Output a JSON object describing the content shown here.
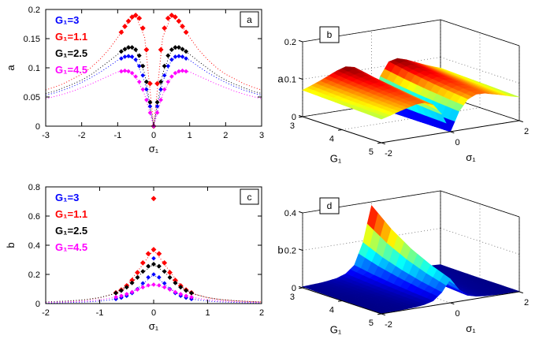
{
  "chart_data": [
    {
      "id": "a",
      "type": "scatter",
      "corner_label": "a",
      "xlabel": "σ₁",
      "ylabel": "a",
      "xlim": [
        -3,
        3
      ],
      "ylim": [
        0,
        0.2
      ],
      "xticks": [
        -3,
        -2,
        -1,
        0,
        1,
        2,
        3
      ],
      "yticks": [
        0,
        0.05,
        0.1,
        0.15,
        0.2
      ],
      "legend_position": "top-left",
      "line_x": [
        -3,
        -2.75,
        -2.5,
        -2.25,
        -2,
        -1.75,
        -1.5,
        -1.25,
        -1,
        -0.75,
        -0.5,
        -0.25,
        0,
        0.25,
        0.5,
        0.75,
        1,
        1.25,
        1.5,
        1.75,
        2,
        2.25,
        2.5,
        2.75,
        3
      ],
      "marker_x": [
        -0.9,
        -0.8,
        -0.7,
        -0.6,
        -0.5,
        -0.4,
        -0.3,
        -0.2,
        -0.1,
        0,
        0.1,
        0.2,
        0.3,
        0.4,
        0.5,
        0.6,
        0.7,
        0.8,
        0.9
      ],
      "series": [
        {
          "label": "G₁=3",
          "color": "#0000ff",
          "msize": 2.8,
          "line_y": [
            0.053,
            0.057,
            0.062,
            0.068,
            0.075,
            0.083,
            0.092,
            0.102,
            0.113,
            0.12,
            0.114,
            0.076,
            0,
            0.076,
            0.114,
            0.12,
            0.113,
            0.102,
            0.092,
            0.083,
            0.075,
            0.068,
            0.062,
            0.057,
            0.053
          ],
          "marker_y": [
            0.116,
            0.119,
            0.12,
            0.119,
            0.114,
            0.103,
            0.087,
            0.063,
            0.034,
            0,
            0.034,
            0.063,
            0.087,
            0.103,
            0.114,
            0.119,
            0.12,
            0.119,
            0.116
          ]
        },
        {
          "label": "G₁=1.1",
          "color": "#ff0000",
          "msize": 3.4,
          "line_y": [
            0.062,
            0.067,
            0.073,
            0.081,
            0.089,
            0.1,
            0.114,
            0.131,
            0.152,
            0.175,
            0.19,
            0.152,
            0,
            0.152,
            0.19,
            0.175,
            0.152,
            0.131,
            0.114,
            0.1,
            0.089,
            0.081,
            0.073,
            0.067,
            0.062
          ],
          "marker_y": [
            0.161,
            0.171,
            0.18,
            0.187,
            0.19,
            0.185,
            0.168,
            0.131,
            0.073,
            0,
            0.073,
            0.131,
            0.168,
            0.185,
            0.19,
            0.187,
            0.18,
            0.171,
            0.161
          ]
        },
        {
          "label": "G₁=2.5",
          "color": "#000000",
          "msize": 3,
          "line_y": [
            0.056,
            0.06,
            0.066,
            0.072,
            0.079,
            0.088,
            0.099,
            0.111,
            0.123,
            0.134,
            0.131,
            0.09,
            0,
            0.09,
            0.131,
            0.134,
            0.123,
            0.111,
            0.099,
            0.088,
            0.079,
            0.072,
            0.066,
            0.06,
            0.056
          ],
          "marker_y": [
            0.128,
            0.132,
            0.135,
            0.135,
            0.131,
            0.121,
            0.103,
            0.076,
            0.041,
            0,
            0.041,
            0.076,
            0.103,
            0.121,
            0.131,
            0.135,
            0.135,
            0.132,
            0.128
          ]
        },
        {
          "label": "G₁=4.5",
          "color": "#ff00ff",
          "msize": 2.8,
          "line_y": [
            0.047,
            0.051,
            0.055,
            0.06,
            0.066,
            0.072,
            0.079,
            0.086,
            0.093,
            0.095,
            0.085,
            0.054,
            0,
            0.054,
            0.085,
            0.095,
            0.093,
            0.086,
            0.079,
            0.072,
            0.066,
            0.06,
            0.055,
            0.051,
            0.047
          ],
          "marker_y": [
            0.094,
            0.095,
            0.094,
            0.091,
            0.085,
            0.076,
            0.063,
            0.045,
            0.023,
            0,
            0.023,
            0.045,
            0.063,
            0.076,
            0.085,
            0.091,
            0.094,
            0.095,
            0.094
          ]
        }
      ]
    },
    {
      "id": "b",
      "type": "surface",
      "corner_label": "b",
      "xlabel": "σ₁",
      "ylabel": "G₁",
      "zlabel": "a",
      "xlim": [
        -2,
        2
      ],
      "ylim": [
        3,
        5
      ],
      "zlim": [
        0,
        0.2
      ],
      "xticks": [
        -2,
        0,
        2
      ],
      "yticks": [
        3,
        4,
        5
      ],
      "zticks": [
        0,
        0.1,
        0.2
      ],
      "colormap": "jet",
      "x": [
        -2,
        -1.75,
        -1.5,
        -1.25,
        -1,
        -0.75,
        -0.5,
        -0.25,
        0,
        0.25,
        0.5,
        0.75,
        1,
        1.25,
        1.5,
        1.75,
        2
      ],
      "y": [
        3,
        3.5,
        4,
        4.5,
        5
      ],
      "z": [
        [
          0.071,
          0.079,
          0.088,
          0.098,
          0.108,
          0.115,
          0.11,
          0.074,
          0,
          0.074,
          0.11,
          0.115,
          0.108,
          0.098,
          0.088,
          0.079,
          0.071
        ],
        [
          0.069,
          0.076,
          0.084,
          0.093,
          0.102,
          0.107,
          0.1,
          0.066,
          0,
          0.066,
          0.1,
          0.107,
          0.102,
          0.093,
          0.084,
          0.076,
          0.069
        ],
        [
          0.067,
          0.073,
          0.081,
          0.089,
          0.097,
          0.1,
          0.092,
          0.059,
          0,
          0.059,
          0.092,
          0.1,
          0.097,
          0.089,
          0.081,
          0.073,
          0.067
        ],
        [
          0.065,
          0.071,
          0.078,
          0.085,
          0.092,
          0.094,
          0.085,
          0.054,
          0,
          0.054,
          0.085,
          0.094,
          0.092,
          0.085,
          0.078,
          0.071,
          0.065
        ],
        [
          0.063,
          0.069,
          0.076,
          0.082,
          0.088,
          0.089,
          0.079,
          0.05,
          0,
          0.05,
          0.079,
          0.089,
          0.088,
          0.082,
          0.076,
          0.069,
          0.063
        ]
      ]
    },
    {
      "id": "c",
      "type": "scatter",
      "corner_label": "c",
      "xlabel": "σ₁",
      "ylabel": "b",
      "xlim": [
        -2,
        2
      ],
      "ylim": [
        0,
        0.8
      ],
      "xticks": [
        -2,
        -1,
        0,
        1,
        2
      ],
      "yticks": [
        0,
        0.2,
        0.4,
        0.6,
        0.8
      ],
      "legend_position": "top-left",
      "line_x": [
        -2,
        -1.75,
        -1.5,
        -1.25,
        -1,
        -0.75,
        -0.5,
        -0.25,
        0,
        0.25,
        0.5,
        0.75,
        1,
        1.25,
        1.5,
        1.75,
        2
      ],
      "marker_x": [
        -0.7,
        -0.6,
        -0.5,
        -0.4,
        -0.3,
        -0.2,
        -0.1,
        0,
        0.1,
        0.2,
        0.3,
        0.4,
        0.5,
        0.6,
        0.7
      ],
      "series": [
        {
          "label": "G₁=3",
          "color": "#0000ff",
          "msize": 2.8,
          "spike": [
            0,
            0.31
          ],
          "line_y": [
            0.004,
            0.006,
            0.008,
            0.011,
            0.017,
            0.028,
            0.053,
            0.118,
            0.2,
            0.118,
            0.053,
            0.028,
            0.017,
            0.011,
            0.008,
            0.006,
            0.004
          ],
          "marker_y": [
            0.031,
            0.04,
            0.053,
            0.072,
            0.1,
            0.139,
            0.18,
            0.2,
            0.18,
            0.139,
            0.1,
            0.072,
            0.053,
            0.04,
            0.031
          ]
        },
        {
          "label": "G₁=1.1",
          "color": "#ff0000",
          "msize": 3.4,
          "spike": [
            0,
            0.72
          ],
          "line_y": [
            0.011,
            0.014,
            0.019,
            0.027,
            0.04,
            0.066,
            0.122,
            0.245,
            0.37,
            0.245,
            0.122,
            0.066,
            0.04,
            0.027,
            0.019,
            0.014,
            0.011
          ],
          "marker_y": [
            0.074,
            0.094,
            0.122,
            0.16,
            0.213,
            0.279,
            0.342,
            0.37,
            0.342,
            0.279,
            0.213,
            0.16,
            0.122,
            0.094,
            0.074
          ]
        },
        {
          "label": "G₁=2.5",
          "color": "#000000",
          "msize": 3,
          "line_y": [
            0.011,
            0.015,
            0.02,
            0.027,
            0.041,
            0.065,
            0.112,
            0.199,
            0.27,
            0.199,
            0.112,
            0.065,
            0.041,
            0.027,
            0.02,
            0.015,
            0.011
          ],
          "marker_y": [
            0.072,
            0.089,
            0.112,
            0.142,
            0.179,
            0.22,
            0.256,
            0.27,
            0.256,
            0.22,
            0.179,
            0.142,
            0.112,
            0.089,
            0.072
          ]
        },
        {
          "label": "G₁=4.5",
          "color": "#ff00ff",
          "msize": 2.8,
          "line_y": [
            0.008,
            0.01,
            0.013,
            0.018,
            0.026,
            0.04,
            0.065,
            0.104,
            0.13,
            0.104,
            0.065,
            0.04,
            0.026,
            0.018,
            0.013,
            0.01,
            0.008
          ],
          "marker_y": [
            0.044,
            0.053,
            0.065,
            0.079,
            0.096,
            0.112,
            0.125,
            0.13,
            0.125,
            0.112,
            0.096,
            0.079,
            0.065,
            0.053,
            0.044
          ]
        }
      ]
    },
    {
      "id": "d",
      "type": "surface",
      "corner_label": "d",
      "xlabel": "σ₁",
      "ylabel": "G₁",
      "zlabel": "b",
      "xlim": [
        -2,
        2
      ],
      "ylim": [
        3,
        5
      ],
      "zlim": [
        0,
        0.4
      ],
      "xticks": [
        -2,
        0,
        2
      ],
      "yticks": [
        3,
        4,
        5
      ],
      "zticks": [
        0,
        0.2,
        0.4
      ],
      "colormap": "jet",
      "x": [
        -2,
        -1.75,
        -1.5,
        -1.25,
        -1,
        -0.75,
        -0.5,
        -0.25,
        0,
        0.25,
        0.5,
        0.75,
        1,
        1.25,
        1.5,
        1.75,
        2
      ],
      "y": [
        3,
        3.5,
        4,
        4.5,
        5
      ],
      "z": [
        [
          0.006,
          0.008,
          0.01,
          0.015,
          0.022,
          0.038,
          0.076,
          0.19,
          0.38,
          0.19,
          0.076,
          0.038,
          0.022,
          0.015,
          0.01,
          0.008,
          0.006
        ],
        [
          0.004,
          0.006,
          0.008,
          0.011,
          0.017,
          0.029,
          0.058,
          0.144,
          0.289,
          0.144,
          0.058,
          0.029,
          0.017,
          0.011,
          0.008,
          0.006,
          0.004
        ],
        [
          0.003,
          0.004,
          0.006,
          0.008,
          0.013,
          0.022,
          0.044,
          0.11,
          0.219,
          0.11,
          0.044,
          0.022,
          0.013,
          0.008,
          0.006,
          0.004,
          0.003
        ],
        [
          0.003,
          0.003,
          0.005,
          0.006,
          0.01,
          0.017,
          0.033,
          0.083,
          0.167,
          0.083,
          0.033,
          0.017,
          0.01,
          0.006,
          0.005,
          0.003,
          0.003
        ],
        [
          0.002,
          0.003,
          0.003,
          0.005,
          0.007,
          0.013,
          0.025,
          0.063,
          0.127,
          0.063,
          0.025,
          0.013,
          0.007,
          0.005,
          0.003,
          0.003,
          0.002
        ]
      ]
    }
  ]
}
